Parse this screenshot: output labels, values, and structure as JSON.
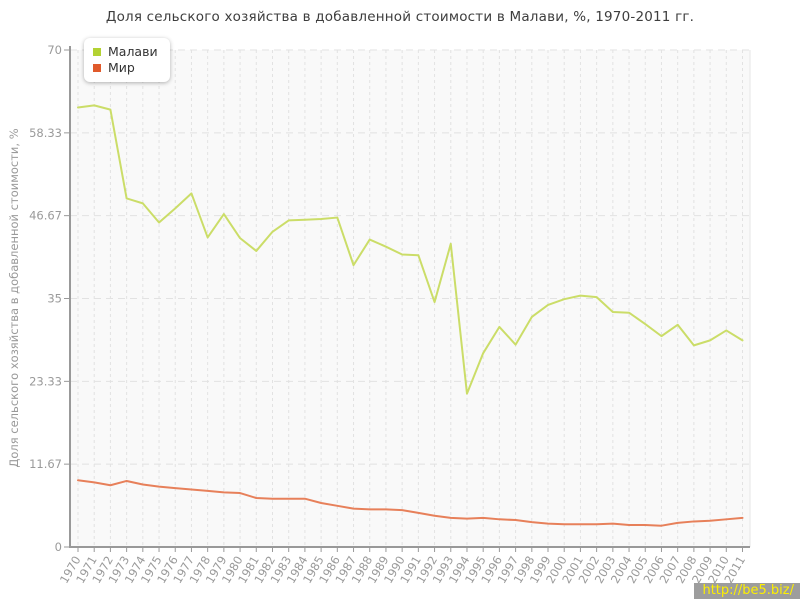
{
  "title": "Доля сельского хозяйства в добавленной стоимости в Малави, %, 1970-2011 гг.",
  "watermark": "http://be5.biz/",
  "chart_data": {
    "type": "line",
    "title": "Доля сельского хозяйства в добавленной стоимости в Малави, %, 1970-2011 гг.",
    "xlabel": "",
    "ylabel": "Доля сельского хозяйства в добавленной стоимости, %",
    "ylim": [
      0,
      70
    ],
    "yticks": [
      0,
      11.67,
      23.33,
      35,
      46.67,
      58.33,
      70
    ],
    "ytick_labels": [
      "0",
      "11.67",
      "23.33",
      "35",
      "46.67",
      "58.33",
      "70"
    ],
    "grid": true,
    "grid_style": "dashed",
    "legend_position": "top-left",
    "categories": [
      1970,
      1971,
      1972,
      1973,
      1974,
      1975,
      1976,
      1977,
      1978,
      1979,
      1980,
      1981,
      1982,
      1983,
      1984,
      1985,
      1986,
      1987,
      1988,
      1989,
      1990,
      1991,
      1992,
      1993,
      1994,
      1995,
      1996,
      1997,
      1998,
      1999,
      2000,
      2001,
      2002,
      2003,
      2004,
      2005,
      2006,
      2007,
      2008,
      2009,
      2010,
      2011
    ],
    "series": [
      {
        "key": "malawi",
        "name": "Малави",
        "line_color": "#cbdd68",
        "swatch_color": "#b3d233",
        "values": [
          61.9,
          62.2,
          61.6,
          49.1,
          48.4,
          45.7,
          47.7,
          49.8,
          43.6,
          46.9,
          43.5,
          41.7,
          44.4,
          46.0,
          46.1,
          46.2,
          46.4,
          39.7,
          43.3,
          42.3,
          41.2,
          41.1,
          34.5,
          42.7,
          21.6,
          27.3,
          31.0,
          28.5,
          32.4,
          34.1,
          34.9,
          35.4,
          35.2,
          33.1,
          33.0,
          31.4,
          29.7,
          31.3,
          28.4,
          29.1,
          30.5,
          29.1
        ]
      },
      {
        "key": "world",
        "name": "Мир",
        "line_color": "#e7805a",
        "swatch_color": "#e05a2b",
        "values": [
          9.4,
          9.1,
          8.7,
          9.3,
          8.8,
          8.5,
          8.3,
          8.1,
          7.9,
          7.7,
          7.6,
          6.9,
          6.8,
          6.8,
          6.8,
          6.2,
          5.8,
          5.4,
          5.3,
          5.3,
          5.2,
          4.8,
          4.4,
          4.1,
          4.0,
          4.1,
          3.9,
          3.8,
          3.5,
          3.3,
          3.2,
          3.2,
          3.2,
          3.3,
          3.1,
          3.1,
          3.0,
          3.4,
          3.6,
          3.7,
          3.9,
          4.1
        ]
      }
    ],
    "colors": {
      "axis": "#999999",
      "grid": "#e2e2e2",
      "plot_bg": "#f9f9f9",
      "tick_label": "#9a9a9a",
      "title": "#3d3d3d"
    }
  }
}
